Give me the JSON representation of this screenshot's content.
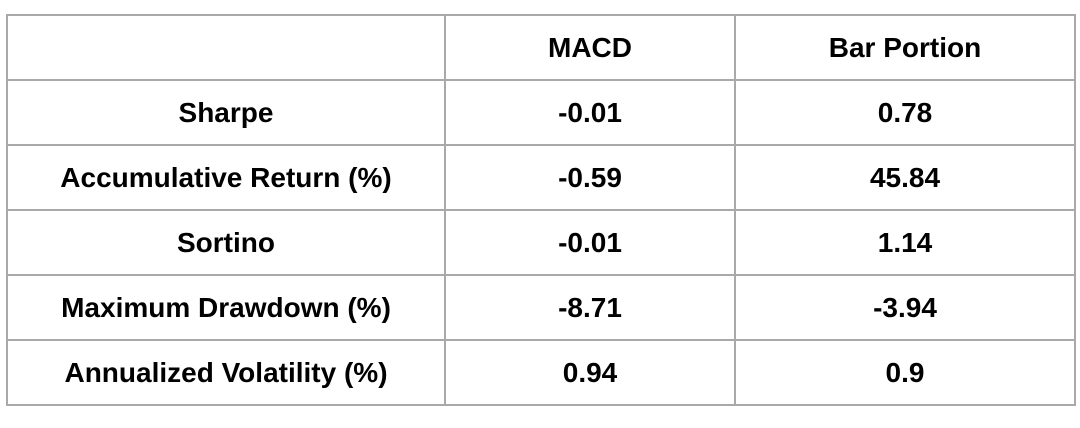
{
  "table": {
    "columns": [
      "MACD",
      "Bar Portion"
    ],
    "rows": [
      [
        "Sharpe",
        "-0.01",
        "0.78"
      ],
      [
        "Accumulative Return (%)",
        "-0.59",
        "45.84"
      ],
      [
        "Sortino",
        "-0.01",
        "1.14"
      ],
      [
        "Maximum Drawdown (%)",
        "-8.71",
        "-3.94"
      ],
      [
        "Annualized Volatility (%)",
        "0.94",
        "0.9"
      ]
    ]
  }
}
